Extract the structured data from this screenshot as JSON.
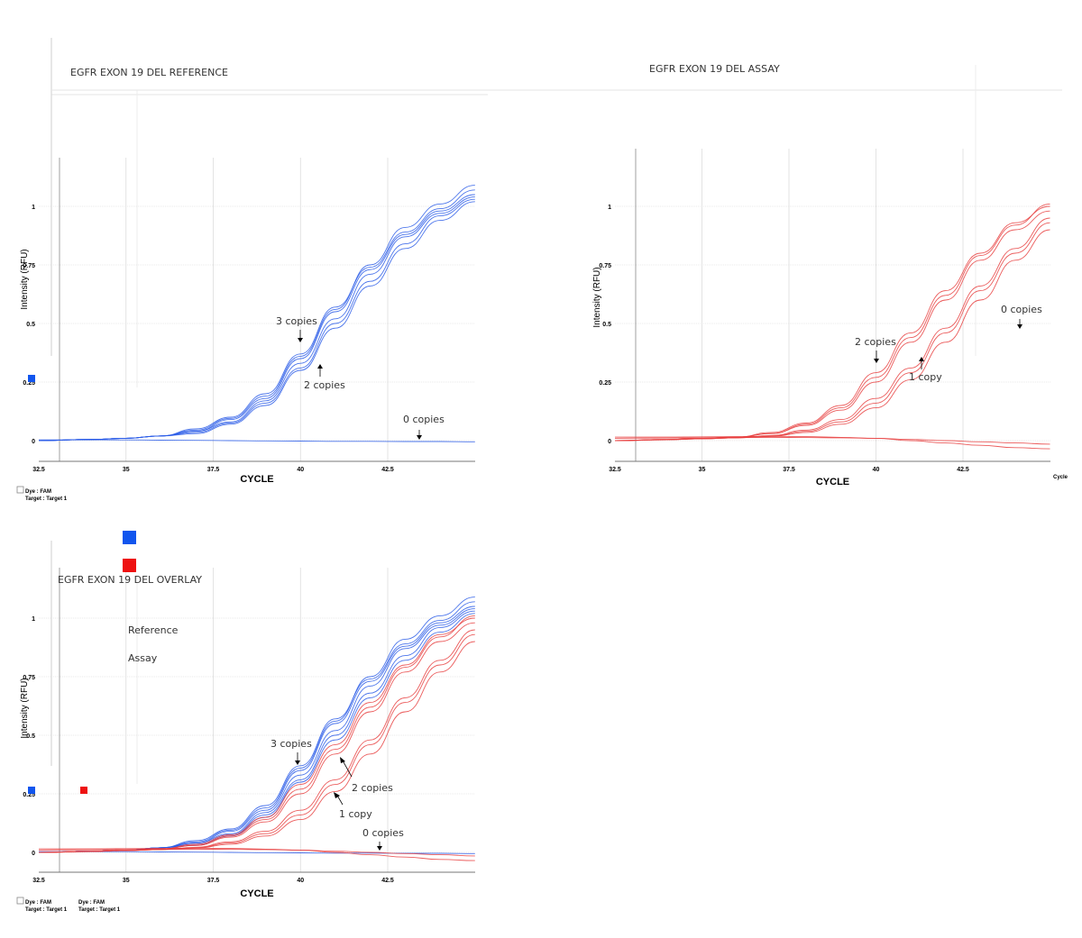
{
  "chart_data": [
    {
      "type": "line",
      "id": "reference",
      "title": "EGFR EXON 19 DEL REFERENCE",
      "xlabel": "CYCLE",
      "ylabel": "Intensity (RFU)",
      "xlim": [
        32.5,
        45
      ],
      "ylim": [
        -0.1,
        1.15
      ],
      "xticks": [
        32.5,
        35,
        37.5,
        40,
        42.5
      ],
      "yticks": [
        0,
        0.25,
        0.5,
        0.75,
        1
      ],
      "xtick_labels": [
        "32.5",
        "35",
        "37.5",
        "40",
        "42.5"
      ],
      "ytick_labels": [
        "0",
        "0.25",
        "0.5",
        "0.75",
        "1"
      ],
      "color": "#2a5ce8",
      "series": [
        {
          "x": [
            32.5,
            34,
            35,
            36,
            37,
            38,
            39,
            40,
            41,
            42,
            43,
            44,
            45
          ],
          "y": [
            0,
            0.005,
            0.01,
            0.02,
            0.04,
            0.09,
            0.18,
            0.35,
            0.55,
            0.73,
            0.88,
            0.98,
            1.05
          ]
        },
        {
          "x": [
            32.5,
            34,
            35,
            36,
            37,
            38,
            39,
            40,
            41,
            42,
            43,
            44,
            45
          ],
          "y": [
            0,
            0.005,
            0.01,
            0.02,
            0.05,
            0.1,
            0.2,
            0.37,
            0.57,
            0.74,
            0.89,
            0.99,
            1.07
          ]
        },
        {
          "x": [
            32.5,
            34,
            35,
            36,
            37,
            38,
            39,
            40,
            41,
            42,
            43,
            44,
            45
          ],
          "y": [
            0,
            0.005,
            0.01,
            0.02,
            0.04,
            0.08,
            0.17,
            0.33,
            0.52,
            0.71,
            0.87,
            0.97,
            1.04
          ]
        },
        {
          "x": [
            32.5,
            34,
            35,
            36,
            37,
            38,
            39,
            40,
            41,
            42,
            43,
            44,
            45
          ],
          "y": [
            0,
            0.005,
            0.01,
            0.02,
            0.03,
            0.07,
            0.15,
            0.3,
            0.48,
            0.66,
            0.82,
            0.94,
            1.02
          ]
        },
        {
          "x": [
            32.5,
            34,
            35,
            36,
            37,
            38,
            39,
            40,
            41,
            42,
            43,
            44,
            45
          ],
          "y": [
            0,
            0.005,
            0.01,
            0.02,
            0.035,
            0.075,
            0.16,
            0.31,
            0.5,
            0.68,
            0.84,
            0.96,
            1.03
          ]
        },
        {
          "x": [
            32.5,
            34,
            35,
            36,
            37,
            38,
            39,
            40,
            41,
            42,
            43,
            44,
            45
          ],
          "y": [
            0,
            0.005,
            0.01,
            0.02,
            0.045,
            0.095,
            0.19,
            0.36,
            0.56,
            0.75,
            0.91,
            1.01,
            1.09
          ]
        },
        {
          "x": [
            32.5,
            34,
            35,
            36,
            37,
            38,
            39,
            40,
            41,
            42,
            43,
            44,
            45
          ],
          "y": [
            0.003,
            0.003,
            0.003,
            0.002,
            0.001,
            0,
            -0.001,
            -0.002,
            -0.003,
            -0.003,
            -0.004,
            -0.004,
            -0.005
          ]
        }
      ],
      "annotations": [
        {
          "text": "3 copies",
          "x": 39.8,
          "y": 0.5,
          "arrow": "down"
        },
        {
          "text": "2 copies",
          "x": 40.5,
          "y": 0.25,
          "arrow": "up"
        },
        {
          "text": "0 copies",
          "x": 43.5,
          "y": 0.07,
          "arrow": "down"
        }
      ],
      "footer": [
        "Dye : FAM",
        "Target : Target 1"
      ]
    },
    {
      "type": "line",
      "id": "assay",
      "title": "EGFR EXON 19 DEL ASSAY",
      "xlabel": "CYCLE",
      "ylabel": "Intensity (RFU)",
      "xlim": [
        32.5,
        45
      ],
      "ylim": [
        -0.1,
        1.15
      ],
      "xticks": [
        32.5,
        35,
        37.5,
        40,
        42.5
      ],
      "yticks": [
        0,
        0.25,
        0.5,
        0.75,
        1
      ],
      "xtick_labels": [
        "32.5",
        "35",
        "37.5",
        "40",
        "42.5"
      ],
      "ytick_labels": [
        "0",
        "0.25",
        "0.5",
        "0.75",
        "1"
      ],
      "color": "#e84040",
      "extra_xlabel": "Cycle",
      "series": [
        {
          "x": [
            32.5,
            34,
            35,
            36,
            37,
            38,
            39,
            40,
            41,
            42,
            43,
            44,
            45
          ],
          "y": [
            0,
            0.005,
            0.01,
            0.015,
            0.03,
            0.07,
            0.14,
            0.27,
            0.44,
            0.62,
            0.79,
            0.92,
            1.01
          ]
        },
        {
          "x": [
            32.5,
            34,
            35,
            36,
            37,
            38,
            39,
            40,
            41,
            42,
            43,
            44,
            45
          ],
          "y": [
            0,
            0.005,
            0.01,
            0.015,
            0.035,
            0.075,
            0.15,
            0.29,
            0.46,
            0.64,
            0.8,
            0.93,
            1.0
          ]
        },
        {
          "x": [
            32.5,
            34,
            35,
            36,
            37,
            38,
            39,
            40,
            41,
            42,
            43,
            44,
            45
          ],
          "y": [
            0,
            0.005,
            0.01,
            0.015,
            0.03,
            0.065,
            0.13,
            0.25,
            0.42,
            0.6,
            0.77,
            0.9,
            0.98
          ]
        },
        {
          "x": [
            32.5,
            34,
            35,
            36,
            37,
            38,
            39,
            40,
            41,
            42,
            43,
            44,
            45
          ],
          "y": [
            0,
            0.004,
            0.008,
            0.012,
            0.02,
            0.04,
            0.08,
            0.16,
            0.29,
            0.46,
            0.64,
            0.8,
            0.93
          ]
        },
        {
          "x": [
            32.5,
            34,
            35,
            36,
            37,
            38,
            39,
            40,
            41,
            42,
            43,
            44,
            45
          ],
          "y": [
            0,
            0.004,
            0.008,
            0.012,
            0.022,
            0.045,
            0.09,
            0.18,
            0.31,
            0.48,
            0.66,
            0.82,
            0.95
          ]
        },
        {
          "x": [
            32.5,
            34,
            35,
            36,
            37,
            38,
            39,
            40,
            41,
            42,
            43,
            44,
            45
          ],
          "y": [
            0,
            0.004,
            0.008,
            0.012,
            0.018,
            0.035,
            0.07,
            0.14,
            0.26,
            0.42,
            0.6,
            0.77,
            0.9
          ]
        },
        {
          "x": [
            32.5,
            34,
            35,
            36,
            37,
            38,
            39,
            40,
            41,
            42,
            43,
            44,
            45
          ],
          "y": [
            0.015,
            0.015,
            0.016,
            0.017,
            0.018,
            0.017,
            0.014,
            0.01,
            0.0,
            -0.01,
            -0.02,
            -0.03,
            -0.035
          ]
        },
        {
          "x": [
            32.5,
            34,
            35,
            36,
            37,
            38,
            39,
            40,
            41,
            42,
            43,
            44,
            45
          ],
          "y": [
            0.01,
            0.011,
            0.012,
            0.013,
            0.014,
            0.013,
            0.012,
            0.01,
            0.005,
            0.0,
            -0.005,
            -0.01,
            -0.015
          ]
        }
      ],
      "annotations": [
        {
          "text": "2 copies",
          "x": 40.0,
          "y": 0.43,
          "arrow": "down"
        },
        {
          "text": "1 copy",
          "x": 41.3,
          "y": 0.27,
          "arrow": "up"
        },
        {
          "text": "0 copies",
          "x": 44.0,
          "y": 0.55,
          "arrow": "down"
        }
      ]
    },
    {
      "type": "line",
      "id": "overlay",
      "title": "EGFR EXON 19 DEL OVERLAY",
      "xlabel": "CYCLE",
      "ylabel": "Intensity (RFU)",
      "xlim": [
        32.5,
        45
      ],
      "ylim": [
        -0.1,
        1.15
      ],
      "xticks": [
        32.5,
        35,
        37.5,
        40,
        42.5
      ],
      "yticks": [
        0,
        0.25,
        0.5,
        0.75,
        1
      ],
      "xtick_labels": [
        "32.5",
        "35",
        "37.5",
        "40",
        "42.5"
      ],
      "ytick_labels": [
        "0",
        "0.25",
        "0.5",
        "0.75",
        "1"
      ],
      "legend": [
        {
          "label": "Reference",
          "color": "#1155ee"
        },
        {
          "label": "Assay",
          "color": "#ee1111"
        }
      ],
      "annotations": [
        {
          "text": "3 copies",
          "x": 39.8,
          "y": 0.46,
          "arrow": "down"
        },
        {
          "text": "2 copies",
          "x": 41.5,
          "y": 0.26,
          "arrow": "up"
        },
        {
          "text": "1 copy",
          "x": 41.0,
          "y": 0.16,
          "arrow": "up"
        },
        {
          "text": "0 copies",
          "x": 43.0,
          "y": 0.06,
          "arrow": "down"
        }
      ],
      "footer": [
        "Dye : FAM",
        "Target : Target 1",
        "Dye : FAM",
        "Target : Target 1"
      ]
    }
  ]
}
